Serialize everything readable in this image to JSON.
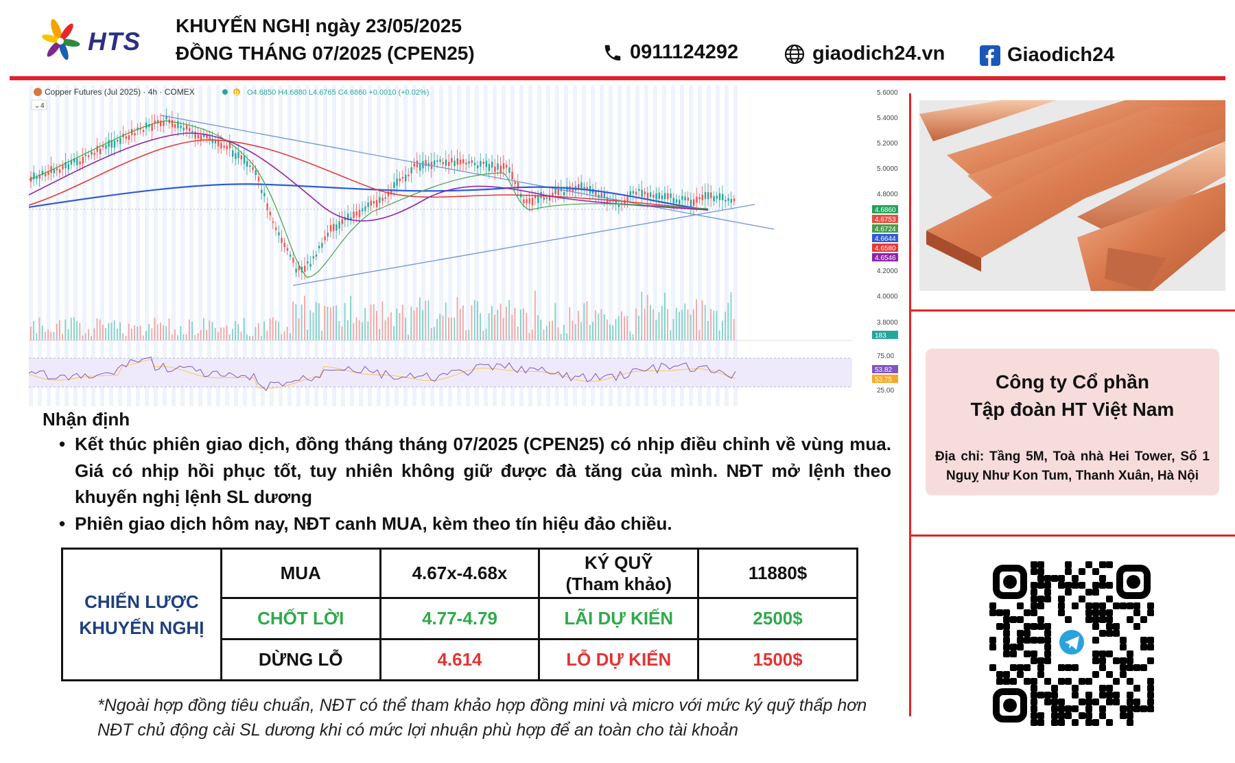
{
  "header": {
    "brand": "HTS",
    "title_line1": "KHUYẾN NGHỊ ngày 23/05/2025",
    "title_line2": "ĐỒNG THÁNG 07/2025 (CPEN25)",
    "phone": "0911124292",
    "website": "giaodich24.vn",
    "facebook": "Giaodich24"
  },
  "chart": {
    "symbol_line": "Copper Futures (Jul 2025) · 4h · COMEX",
    "ohlc_line": "O4.6850 H4.6880 L4.6765 C4.6860 +0.0010 (+0.02%)",
    "indicator_count": "4",
    "price_ticks": [
      "5.6000",
      "5.4000",
      "5.2000",
      "5.0000",
      "4.8000",
      "4.2000",
      "4.0000",
      "3.8000"
    ],
    "price_badges": [
      {
        "label": "4.6860",
        "color": "#22a35a"
      },
      {
        "label": "4.6753",
        "color": "#e94b3c"
      },
      {
        "label": "4.6724",
        "color": "#43a047"
      },
      {
        "label": "4.6644",
        "color": "#2f5bd6"
      },
      {
        "label": "4.6580",
        "color": "#e53935"
      },
      {
        "label": "4.6546",
        "color": "#8e24aa"
      }
    ],
    "volume_badge": "183",
    "rsi_ticks": [
      "75.00",
      "25.00"
    ],
    "rsi_badges": [
      {
        "label": "53.82",
        "color": "#7e57c2"
      },
      {
        "label": "53.75",
        "color": "#f9a825"
      }
    ]
  },
  "analysis": {
    "heading": "Nhận định",
    "bullets": [
      "Kết thúc phiên giao dịch, đồng tháng tháng 07/2025 (CPEN25) có nhịp điều chỉnh về vùng mua. Giá có nhịp hồi phục tốt, tuy nhiên không giữ được đà tăng của mình. NĐT mở lệnh theo khuyến nghị lệnh SL dương",
      "Phiên giao dịch hôm nay, NĐT canh MUA, kèm theo tín hiệu đảo chiều."
    ]
  },
  "strategy": {
    "label_line1": "CHIẾN LƯỢC",
    "label_line2": "KHUYẾN NGHỊ",
    "buy_label": "MUA",
    "buy_value": "4.67x-4.68x",
    "margin_label_1": "KÝ QUỸ",
    "margin_label_2": "(Tham khảo)",
    "margin_value": "11880$",
    "tp_label": "CHỐT LỜI",
    "tp_value": "4.77-4.79",
    "expected_profit_label": "LÃI DỰ KIẾN",
    "expected_profit_value": "2500$",
    "sl_label": "DỪNG LỖ",
    "sl_value": "4.614",
    "expected_loss_label": "LỖ DỰ KIẾN",
    "expected_loss_value": "1500$"
  },
  "footnotes": [
    "*Ngoài hợp đồng tiêu chuẩn, NĐT có thể tham khảo hợp đồng mini và micro với mức ký quỹ thấp hơn",
    "NĐT chủ động cài SL dương khi có mức lợi nhuận phù hợp để an toàn cho tài khoản"
  ],
  "company": {
    "name_line1": "Công ty Cổ phần",
    "name_line2": "Tập đoàn HT Việt Nam",
    "address": "Địa chỉ: Tầng 5M, Toà nhà Hei Tower, Số 1 Nguỵ Như Kon Tum, Thanh Xuân, Hà Nội"
  },
  "colors": {
    "accent_red": "#e0222a",
    "brand_navy": "#2a2f86",
    "strategy_blue": "#1f3f80",
    "profit_green": "#2faa4b",
    "loss_red": "#e23434",
    "card_pink": "#f7dcdc"
  },
  "icons": [
    "phone-icon",
    "globe-icon",
    "facebook-icon",
    "telegram-icon"
  ]
}
